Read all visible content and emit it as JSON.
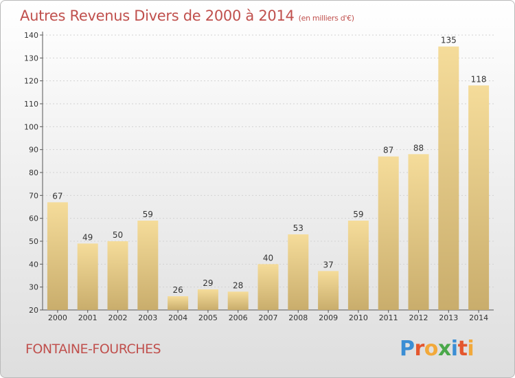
{
  "chart_data": {
    "type": "bar",
    "title": "Autres Revenus Divers de 2000 à 2014",
    "subtitle": "(en milliers d'€)",
    "categories": [
      "2000",
      "2001",
      "2002",
      "2003",
      "2004",
      "2005",
      "2006",
      "2007",
      "2008",
      "2009",
      "2010",
      "2011",
      "2012",
      "2013",
      "2014"
    ],
    "values": [
      67,
      49,
      50,
      59,
      26,
      29,
      28,
      40,
      53,
      37,
      59,
      87,
      88,
      135,
      118
    ],
    "ylim": [
      20,
      140
    ],
    "yticks": [
      20,
      30,
      40,
      50,
      60,
      70,
      80,
      90,
      100,
      110,
      120,
      130,
      140
    ],
    "grid": true,
    "bar_color_top": "#f5dc9a",
    "bar_color_bottom": "#c9ad6c"
  },
  "location": "FONTAINE-FOURCHES",
  "logo": {
    "text": "Proxiti",
    "letters": [
      {
        "ch": "P",
        "color": "#3b8ed4"
      },
      {
        "ch": "r",
        "color": "#e4572e"
      },
      {
        "ch": "o",
        "color": "#f2a93b"
      },
      {
        "ch": "x",
        "color": "#4aa84a"
      },
      {
        "ch": "i",
        "color": "#3b8ed4"
      },
      {
        "ch": "t",
        "color": "#e4572e"
      },
      {
        "ch": "i",
        "color": "#f2a93b"
      }
    ]
  }
}
